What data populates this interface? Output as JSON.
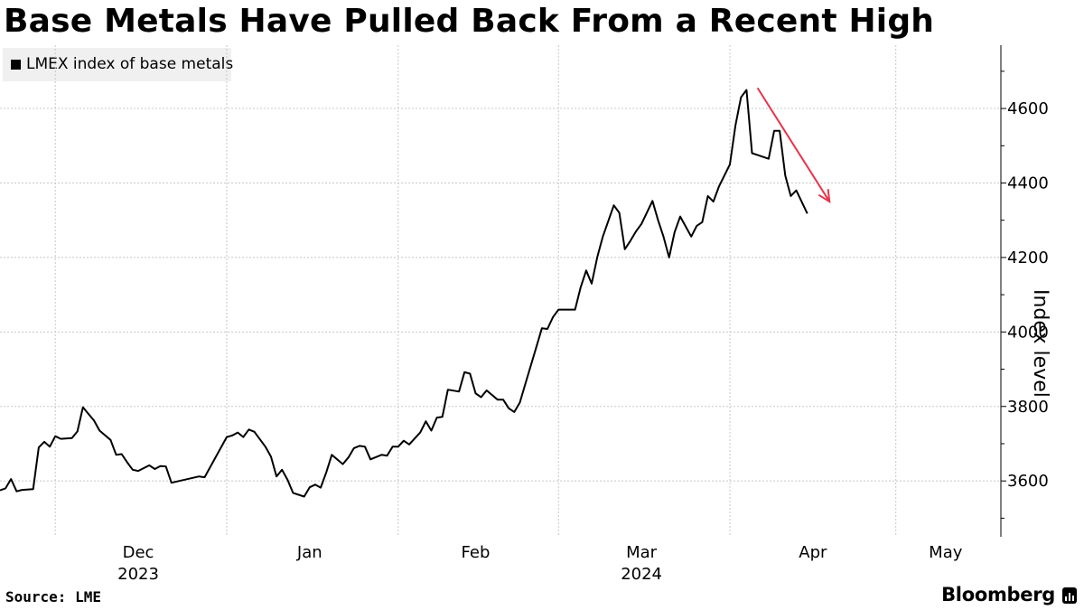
{
  "title": "Base Metals Have Pulled Back From a Recent High",
  "source": "Source: LME",
  "brand": "Bloomberg",
  "chart_data": {
    "type": "line",
    "ylabel": "Index level",
    "xlabel": "",
    "ylim": [
      3450,
      4770
    ],
    "yticks": [
      3600,
      3800,
      4000,
      4200,
      4400,
      4600
    ],
    "grid": true,
    "legend_position": "top-left",
    "x_start": "2023-11-21",
    "x_end": "2024-05-20",
    "month_ticks": [
      {
        "date": "2023-12-01",
        "label": "Dec",
        "year": "2023"
      },
      {
        "date": "2024-01-01",
        "label": "Jan"
      },
      {
        "date": "2024-02-01",
        "label": "Feb"
      },
      {
        "date": "2024-03-01",
        "label": "Mar",
        "year": "2024"
      },
      {
        "date": "2024-04-01",
        "label": "Apr"
      },
      {
        "date": "2024-05-01",
        "label": "May"
      }
    ],
    "series": [
      {
        "name": "LMEX index of base metals",
        "color": "#000000",
        "points": [
          [
            "2023-11-21",
            3575
          ],
          [
            "2023-11-22",
            3580
          ],
          [
            "2023-11-23",
            3605
          ],
          [
            "2023-11-24",
            3572
          ],
          [
            "2023-11-25",
            3576
          ],
          [
            "2023-11-27",
            3578
          ],
          [
            "2023-11-28",
            3690
          ],
          [
            "2023-11-29",
            3705
          ],
          [
            "2023-11-30",
            3692
          ],
          [
            "2023-12-01",
            3720
          ],
          [
            "2023-12-02",
            3713
          ],
          [
            "2023-12-04",
            3715
          ],
          [
            "2023-12-05",
            3733
          ],
          [
            "2023-12-06",
            3798
          ],
          [
            "2023-12-07",
            3780
          ],
          [
            "2023-12-08",
            3762
          ],
          [
            "2023-12-09",
            3735
          ],
          [
            "2023-12-11",
            3710
          ],
          [
            "2023-12-12",
            3670
          ],
          [
            "2023-12-13",
            3672
          ],
          [
            "2023-12-14",
            3650
          ],
          [
            "2023-12-15",
            3630
          ],
          [
            "2023-12-16",
            3627
          ],
          [
            "2023-12-18",
            3642
          ],
          [
            "2023-12-19",
            3632
          ],
          [
            "2023-12-20",
            3640
          ],
          [
            "2023-12-21",
            3639
          ],
          [
            "2023-12-22",
            3595
          ],
          [
            "2023-12-27",
            3612
          ],
          [
            "2023-12-28",
            3610
          ],
          [
            "2024-01-01",
            3718
          ],
          [
            "2024-01-02",
            3722
          ],
          [
            "2024-01-03",
            3730
          ],
          [
            "2024-01-04",
            3718
          ],
          [
            "2024-01-05",
            3738
          ],
          [
            "2024-01-06",
            3732
          ],
          [
            "2024-01-08",
            3692
          ],
          [
            "2024-01-09",
            3665
          ],
          [
            "2024-01-10",
            3612
          ],
          [
            "2024-01-11",
            3630
          ],
          [
            "2024-01-12",
            3603
          ],
          [
            "2024-01-13",
            3568
          ],
          [
            "2024-01-15",
            3558
          ],
          [
            "2024-01-16",
            3583
          ],
          [
            "2024-01-17",
            3590
          ],
          [
            "2024-01-18",
            3582
          ],
          [
            "2024-01-19",
            3623
          ],
          [
            "2024-01-20",
            3670
          ],
          [
            "2024-01-22",
            3645
          ],
          [
            "2024-01-23",
            3663
          ],
          [
            "2024-01-24",
            3688
          ],
          [
            "2024-01-25",
            3694
          ],
          [
            "2024-01-26",
            3692
          ],
          [
            "2024-01-27",
            3658
          ],
          [
            "2024-01-29",
            3670
          ],
          [
            "2024-01-30",
            3668
          ],
          [
            "2024-01-31",
            3692
          ],
          [
            "2024-02-01",
            3692
          ],
          [
            "2024-02-02",
            3708
          ],
          [
            "2024-02-03",
            3698
          ],
          [
            "2024-02-05",
            3730
          ],
          [
            "2024-02-06",
            3760
          ],
          [
            "2024-02-07",
            3735
          ],
          [
            "2024-02-08",
            3770
          ],
          [
            "2024-02-09",
            3772
          ],
          [
            "2024-02-10",
            3845
          ],
          [
            "2024-02-12",
            3840
          ],
          [
            "2024-02-13",
            3892
          ],
          [
            "2024-02-14",
            3888
          ],
          [
            "2024-02-15",
            3835
          ],
          [
            "2024-02-16",
            3825
          ],
          [
            "2024-02-17",
            3843
          ],
          [
            "2024-02-19",
            3818
          ],
          [
            "2024-02-20",
            3818
          ],
          [
            "2024-02-21",
            3795
          ],
          [
            "2024-02-22",
            3785
          ],
          [
            "2024-02-23",
            3810
          ],
          [
            "2024-02-24",
            3860
          ],
          [
            "2024-02-26",
            3960
          ],
          [
            "2024-02-27",
            4010
          ],
          [
            "2024-02-28",
            4008
          ],
          [
            "2024-02-29",
            4040
          ],
          [
            "2024-03-01",
            4060
          ],
          [
            "2024-03-02",
            4060
          ],
          [
            "2024-03-04",
            4060
          ],
          [
            "2024-03-05",
            4120
          ],
          [
            "2024-03-06",
            4165
          ],
          [
            "2024-03-07",
            4130
          ],
          [
            "2024-03-08",
            4200
          ],
          [
            "2024-03-09",
            4255
          ],
          [
            "2024-03-11",
            4340
          ],
          [
            "2024-03-12",
            4320
          ],
          [
            "2024-03-13",
            4222
          ],
          [
            "2024-03-14",
            4245
          ],
          [
            "2024-03-15",
            4270
          ],
          [
            "2024-03-16",
            4290
          ],
          [
            "2024-03-18",
            4352
          ],
          [
            "2024-03-19",
            4300
          ],
          [
            "2024-03-20",
            4255
          ],
          [
            "2024-03-21",
            4200
          ],
          [
            "2024-03-22",
            4268
          ],
          [
            "2024-03-23",
            4310
          ],
          [
            "2024-03-25",
            4256
          ],
          [
            "2024-03-26",
            4285
          ],
          [
            "2024-03-27",
            4295
          ],
          [
            "2024-03-28",
            4365
          ],
          [
            "2024-03-29",
            4350
          ],
          [
            "2024-03-30",
            4390
          ],
          [
            "2024-04-01",
            4450
          ],
          [
            "2024-04-02",
            4555
          ],
          [
            "2024-04-03",
            4630
          ],
          [
            "2024-04-04",
            4650
          ],
          [
            "2024-04-05",
            4480
          ],
          [
            "2024-04-06",
            4475
          ],
          [
            "2024-04-08",
            4465
          ],
          [
            "2024-04-09",
            4540
          ],
          [
            "2024-04-10",
            4540
          ],
          [
            "2024-04-11",
            4420
          ],
          [
            "2024-04-12",
            4365
          ],
          [
            "2024-04-13",
            4380
          ],
          [
            "2024-04-15",
            4318
          ]
        ]
      }
    ],
    "annotations": [
      {
        "type": "arrow",
        "color": "#e8334a",
        "from": [
          "2024-04-06",
          4655
        ],
        "to": [
          "2024-04-19",
          4350
        ]
      }
    ]
  }
}
